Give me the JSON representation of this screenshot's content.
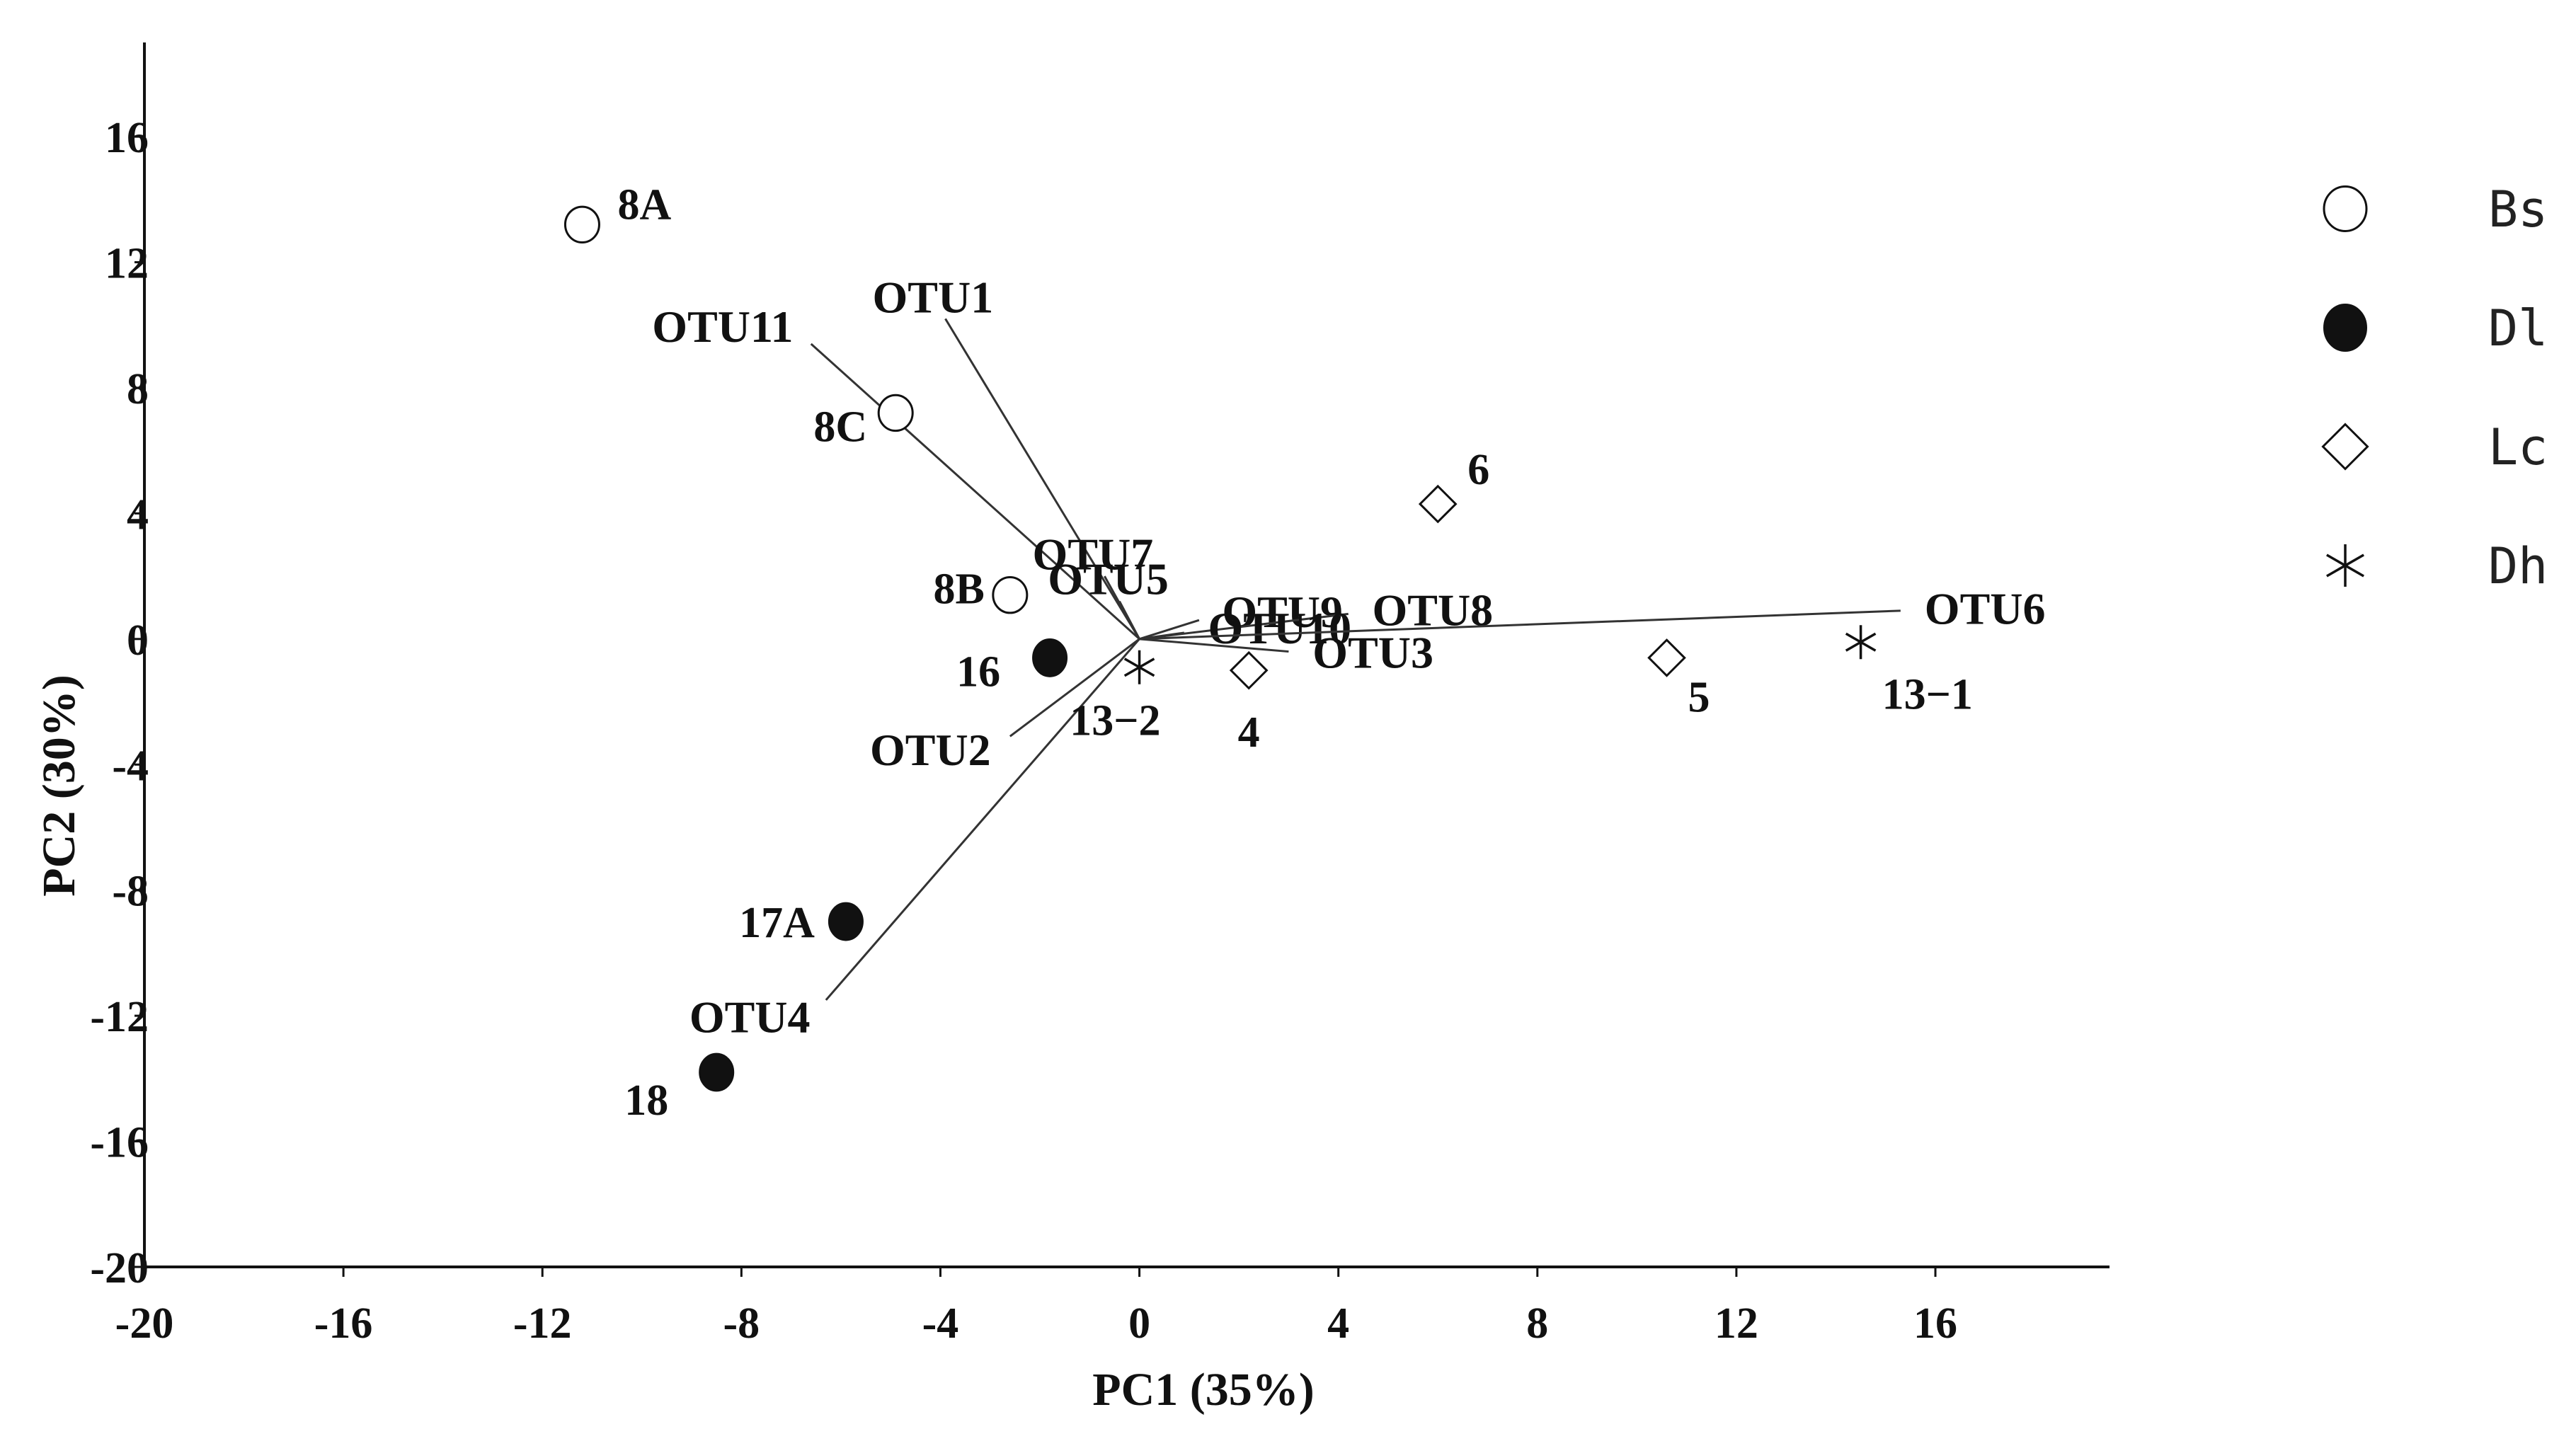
{
  "chart_data": {
    "type": "scatter",
    "xlabel": "PC1 (35%)",
    "ylabel": "PC2 (30%)",
    "xlim": [
      -20,
      19.5
    ],
    "ylim": [
      -20,
      19
    ],
    "x_ticks": [
      -20,
      -16,
      -12,
      -8,
      -4,
      0,
      4,
      8,
      12,
      16
    ],
    "y_ticks": [
      16,
      12,
      8,
      4,
      0,
      -4,
      -8,
      -12,
      -16,
      -20
    ],
    "legend_position": "right",
    "legend": [
      {
        "name": "Bs",
        "marker": "circle-open"
      },
      {
        "name": "Dl",
        "marker": "circle-filled"
      },
      {
        "name": "Lc",
        "marker": "diamond-open"
      },
      {
        "name": "Dh",
        "marker": "asterisk"
      }
    ],
    "series": [
      {
        "name": "Bs",
        "marker": "circle-open",
        "points": [
          {
            "label": "8A",
            "x": -11.2,
            "y": 13.2
          },
          {
            "label": "8C",
            "x": -4.9,
            "y": 7.2
          },
          {
            "label": "8B",
            "x": -2.6,
            "y": 1.4
          }
        ]
      },
      {
        "name": "Dl",
        "marker": "circle-filled",
        "points": [
          {
            "label": "16",
            "x": -1.8,
            "y": -0.6
          },
          {
            "label": "17A",
            "x": -5.9,
            "y": -9.0
          },
          {
            "label": "18",
            "x": -8.5,
            "y": -13.8
          }
        ]
      },
      {
        "name": "Lc",
        "marker": "diamond-open",
        "points": [
          {
            "label": "6",
            "x": 6.0,
            "y": 4.3
          },
          {
            "label": "4",
            "x": 2.2,
            "y": -1.0
          },
          {
            "label": "5",
            "x": 10.6,
            "y": -0.6
          }
        ]
      },
      {
        "name": "Dh",
        "marker": "asterisk",
        "points": [
          {
            "label": "13−2",
            "x": 0.0,
            "y": -0.9
          },
          {
            "label": "13−1",
            "x": 14.5,
            "y": -0.1
          }
        ]
      }
    ],
    "loadings": [
      {
        "name": "OTU1",
        "x": -3.9,
        "y": 10.2
      },
      {
        "name": "OTU11",
        "x": -6.6,
        "y": 9.4
      },
      {
        "name": "OTU7",
        "x": -0.7,
        "y": 2.0
      },
      {
        "name": "OTU5",
        "x": -0.4,
        "y": 1.2
      },
      {
        "name": "OTU9",
        "x": 1.2,
        "y": 0.6
      },
      {
        "name": "OTU8",
        "x": 4.2,
        "y": 0.8
      },
      {
        "name": "OTU10",
        "x": 0.9,
        "y": 0.2
      },
      {
        "name": "OTU6",
        "x": 15.3,
        "y": 0.9
      },
      {
        "name": "OTU3",
        "x": 3.0,
        "y": -0.4
      },
      {
        "name": "OTU2",
        "x": -2.6,
        "y": -3.1
      },
      {
        "name": "OTU4",
        "x": -6.3,
        "y": -11.5
      }
    ]
  },
  "colors": {
    "marker": "#111111",
    "loading_line": "#333333",
    "axis": "#111111"
  }
}
